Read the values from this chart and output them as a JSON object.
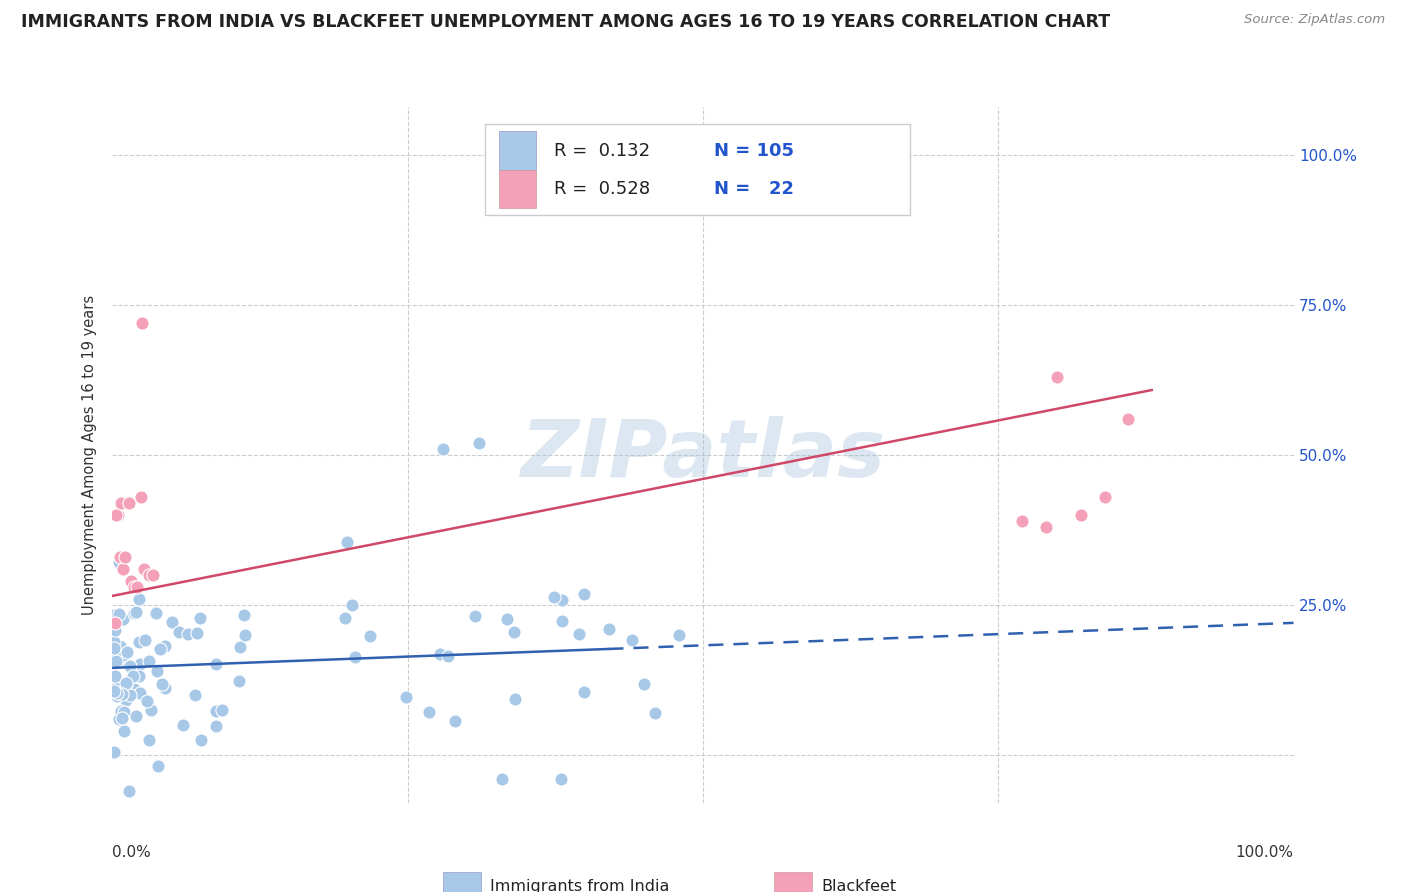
{
  "title": "IMMIGRANTS FROM INDIA VS BLACKFEET UNEMPLOYMENT AMONG AGES 16 TO 19 YEARS CORRELATION CHART",
  "source": "Source: ZipAtlas.com",
  "ylabel": "Unemployment Among Ages 16 to 19 years",
  "right_yticks": [
    "100.0%",
    "75.0%",
    "50.0%",
    "25.0%"
  ],
  "right_ytick_vals": [
    1.0,
    0.75,
    0.5,
    0.25
  ],
  "xlim": [
    0.0,
    1.0
  ],
  "ylim": [
    -0.08,
    1.08
  ],
  "legend_label1": "Immigrants from India",
  "legend_label2": "Blackfeet",
  "color_blue": "#a8c8e8",
  "color_pink": "#f4a0b8",
  "line_blue": "#3060b0",
  "line_pink": "#d04868",
  "text_blue": "#2255cc",
  "background": "#ffffff",
  "grid_color": "#cccccc",
  "watermark": "ZIPatlas",
  "seed": 42
}
